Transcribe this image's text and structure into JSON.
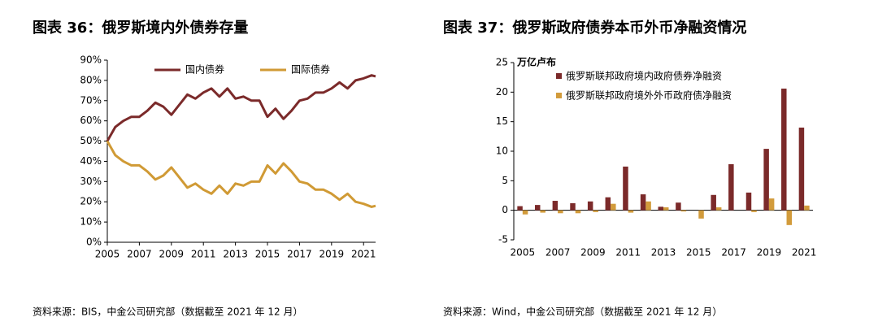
{
  "chart_data": [
    {
      "type": "line",
      "title": "图表 36：俄罗斯境内外债券存量",
      "source": "资料来源：BIS，中金公司研究部（数据截至 2021 年 12 月）",
      "x": [
        2005.0,
        2005.5,
        2006.0,
        2006.5,
        2007.0,
        2007.5,
        2008.0,
        2008.5,
        2009.0,
        2009.5,
        2010.0,
        2010.5,
        2011.0,
        2011.5,
        2012.0,
        2012.5,
        2013.0,
        2013.5,
        2014.0,
        2014.5,
        2015.0,
        2015.5,
        2016.0,
        2016.5,
        2017.0,
        2017.5,
        2018.0,
        2018.5,
        2019.0,
        2019.5,
        2020.0,
        2020.5,
        2021.0,
        2021.5,
        2021.75
      ],
      "series": [
        {
          "name": "国内债券",
          "color": "#7b2a2a",
          "values": [
            50,
            57,
            60,
            62,
            62,
            65,
            69,
            67,
            63,
            68,
            73,
            71,
            74,
            76,
            72,
            76,
            71,
            72,
            70,
            70,
            62,
            66,
            61,
            65,
            70,
            71,
            74,
            74,
            76,
            79,
            76,
            80,
            81,
            82.5,
            82
          ]
        },
        {
          "name": "国际债券",
          "color": "#d09a35",
          "values": [
            50,
            43,
            40,
            38,
            38,
            35,
            31,
            33,
            37,
            32,
            27,
            29,
            26,
            24,
            28,
            24,
            29,
            28,
            30,
            30,
            38,
            34,
            39,
            35,
            30,
            29,
            26,
            26,
            24,
            21,
            24,
            20,
            19,
            17.5,
            18
          ]
        }
      ],
      "xlim": [
        2005,
        2021.75
      ],
      "xticks": [
        2005,
        2007,
        2009,
        2011,
        2013,
        2015,
        2017,
        2019,
        2021
      ],
      "ylim": [
        0,
        90
      ],
      "yticks": [
        {
          "value": 0,
          "label": "0%"
        },
        {
          "value": 10,
          "label": "10%"
        },
        {
          "value": 20,
          "label": "20%"
        },
        {
          "value": 30,
          "label": "30%"
        },
        {
          "value": 40,
          "label": "40%"
        },
        {
          "value": 50,
          "label": "50%"
        },
        {
          "value": 60,
          "label": "60%"
        },
        {
          "value": 70,
          "label": "70%"
        },
        {
          "value": 80,
          "label": "80%"
        },
        {
          "value": 90,
          "label": "90%"
        }
      ],
      "grid": false,
      "legend": "top"
    },
    {
      "type": "bar",
      "title": "图表 37：俄罗斯政府债券本币外币净融资情况",
      "source": "资料来源：Wind，中金公司研究部（数据截至 2021 年 12 月）",
      "y_label": "万亿卢布",
      "categories": [
        "2005",
        null,
        "2007",
        null,
        "2009",
        null,
        "2011",
        null,
        "2013",
        null,
        "2015",
        null,
        "2017",
        null,
        "2019",
        null,
        "2021"
      ],
      "series": [
        {
          "name": "俄罗斯联邦政府境内政府债券净融资",
          "color": "#7b2a2a",
          "values": [
            0.7,
            0.9,
            1.6,
            1.2,
            1.5,
            2.2,
            7.4,
            2.7,
            0.6,
            1.3,
            0,
            2.6,
            7.8,
            3.0,
            10.4,
            20.6,
            14.0
          ]
        },
        {
          "name": "俄罗斯联邦政府境外外币政府债净融资",
          "color": "#d29b3b",
          "values": [
            -0.7,
            -0.4,
            -0.5,
            -0.5,
            -0.3,
            1.1,
            -0.4,
            1.5,
            0.5,
            -0.2,
            -1.4,
            0.5,
            0,
            -0.3,
            2.0,
            -2.5,
            0.8
          ]
        }
      ],
      "ylim": [
        -5,
        25
      ],
      "yticks": [
        -5,
        0,
        5,
        10,
        15,
        20,
        25
      ],
      "grid": false,
      "legend": "upper left"
    }
  ]
}
